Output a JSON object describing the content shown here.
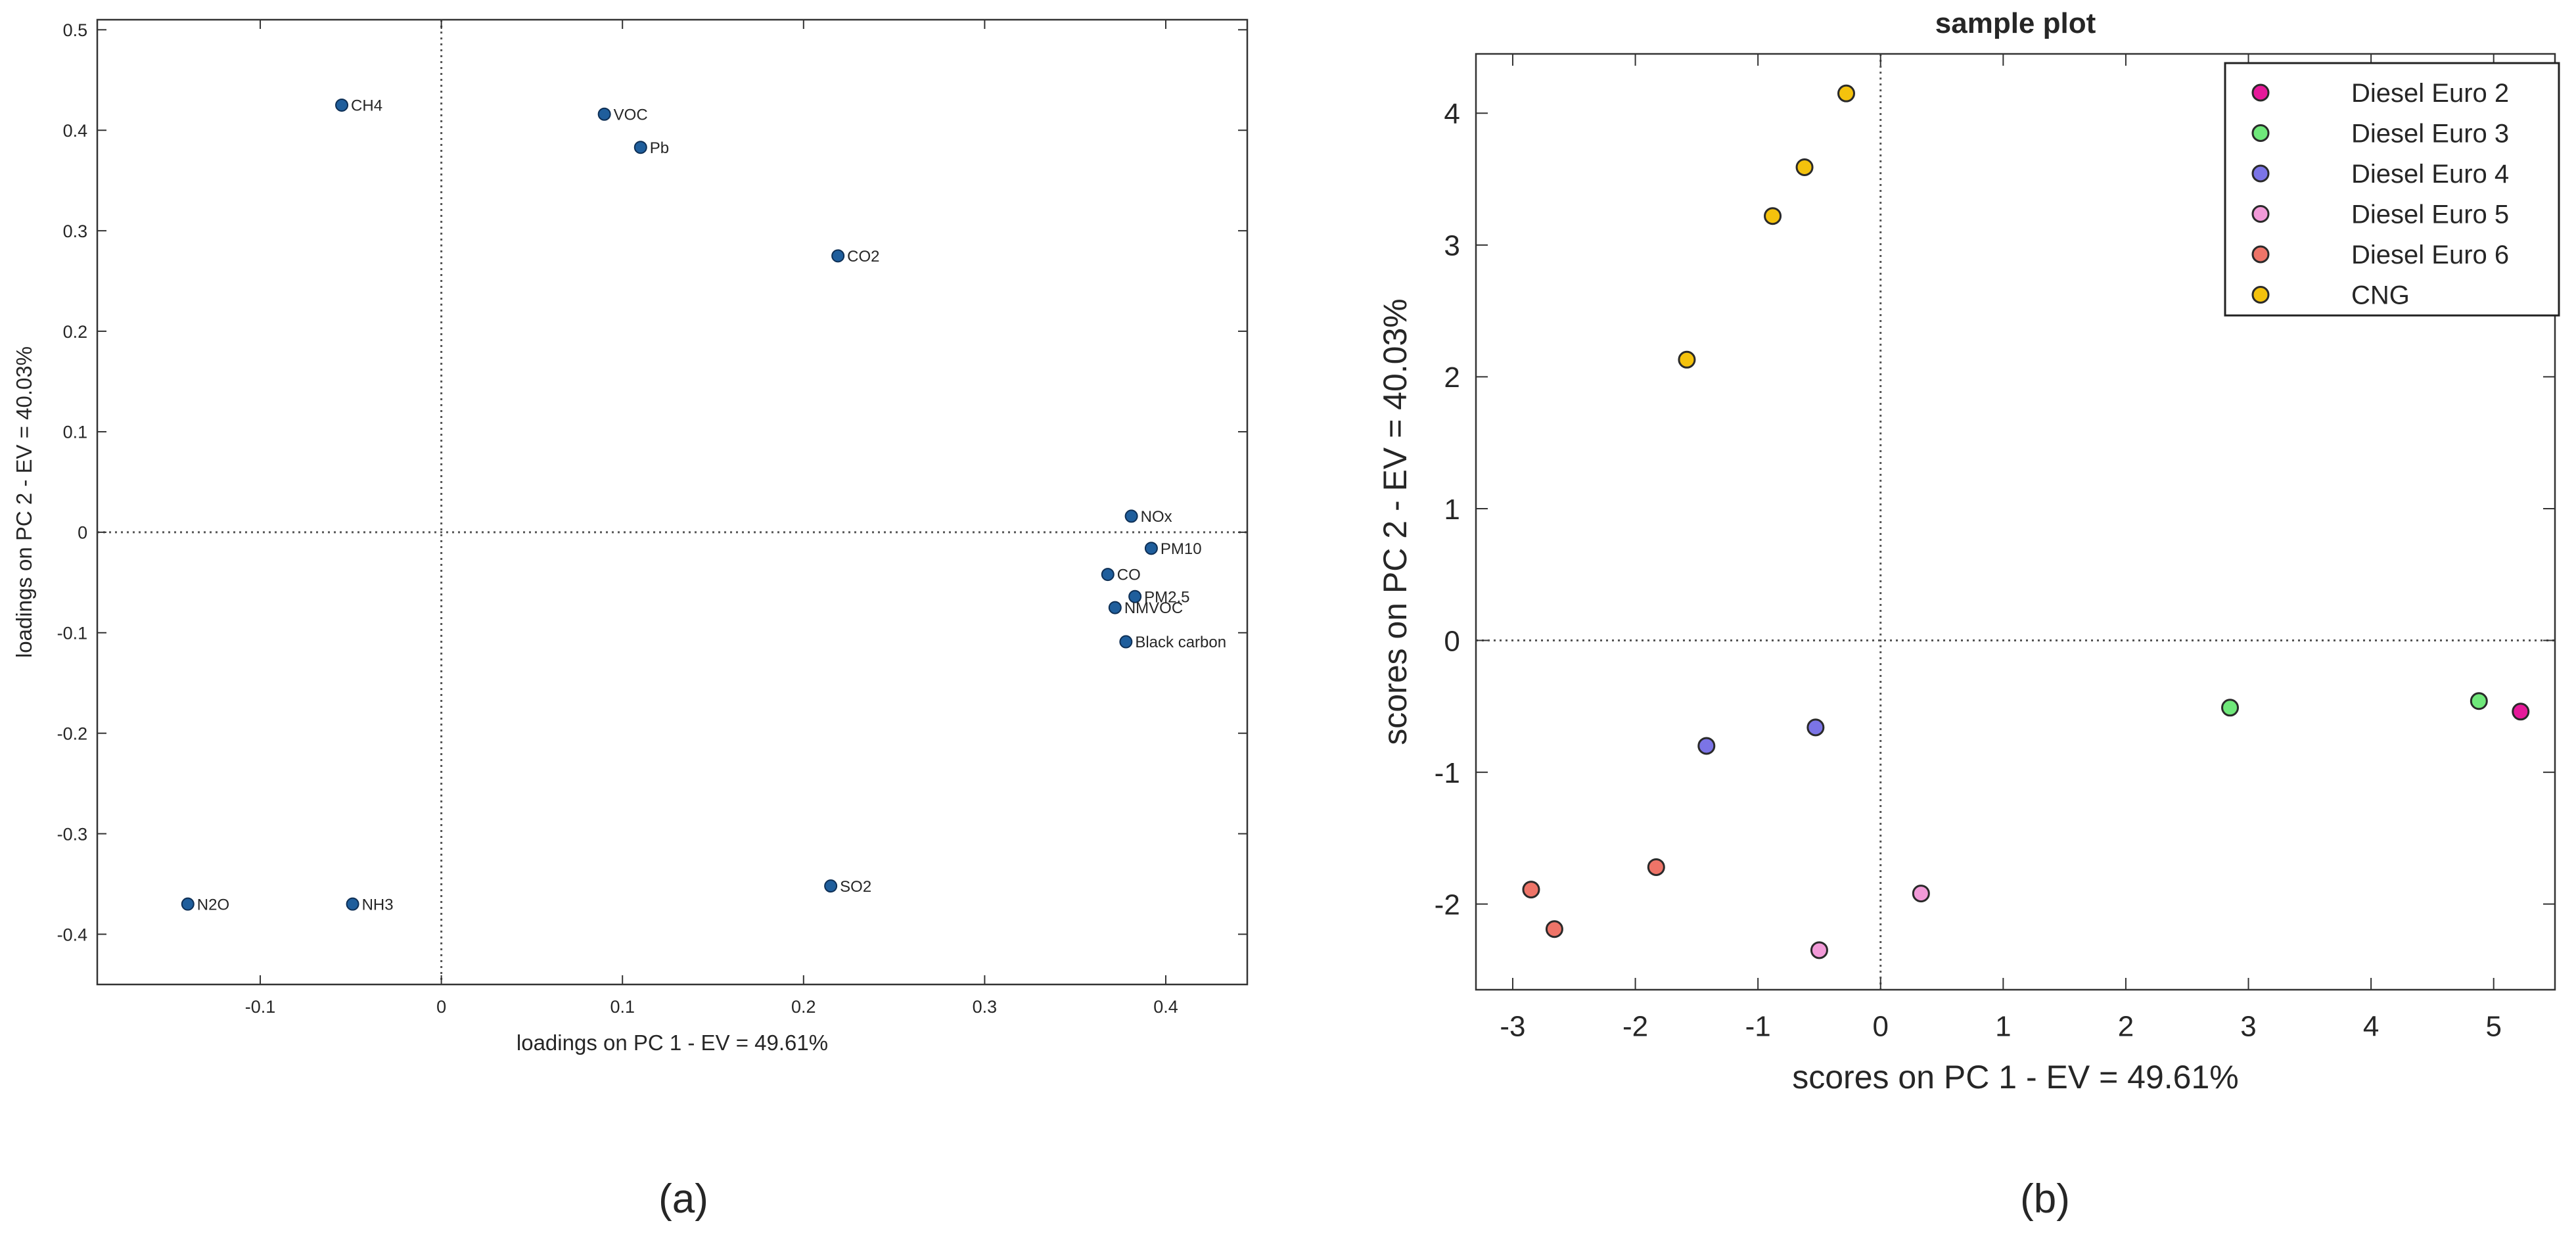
{
  "captions": {
    "a": "(a)",
    "b": "(b)"
  },
  "colors": {
    "loading_marker": "#1f5e9c",
    "axis": "#333333",
    "Diesel Euro 2": "#e6199a",
    "Diesel Euro 3": "#6fe87a",
    "Diesel Euro 4": "#7b74e6",
    "Diesel Euro 5": "#f29ad8",
    "Diesel Euro 6": "#ee7468",
    "CNG": "#f4c20d"
  },
  "chart_data": [
    {
      "id": "a",
      "type": "scatter",
      "title": "",
      "xlabel": "loadings on PC 1 - EV = 49.61%",
      "ylabel": "loadings on PC 2 - EV = 40.03%",
      "xlim": [
        -0.19,
        0.445
      ],
      "ylim": [
        -0.45,
        0.51
      ],
      "xticks": [
        -0.1,
        0,
        0.1,
        0.2,
        0.3,
        0.4
      ],
      "xtick_labels": [
        "-0.1",
        "0",
        "0.1",
        "0.2",
        "0.3",
        "0.4"
      ],
      "yticks": [
        -0.4,
        -0.3,
        -0.2,
        -0.1,
        0,
        0.1,
        0.2,
        0.3,
        0.4,
        0.5
      ],
      "ytick_labels": [
        "-0.4",
        "-0.3",
        "-0.2",
        "-0.1",
        "0",
        "0.1",
        "0.2",
        "0.3",
        "0.4",
        "0.5"
      ],
      "grid": false,
      "reference_lines": {
        "x": 0,
        "y": 0,
        "style": "dotted"
      },
      "points": [
        {
          "label": "CH4",
          "x": -0.055,
          "y": 0.425
        },
        {
          "label": "VOC",
          "x": 0.09,
          "y": 0.416
        },
        {
          "label": "Pb",
          "x": 0.11,
          "y": 0.383
        },
        {
          "label": "CO2",
          "x": 0.219,
          "y": 0.275
        },
        {
          "label": "NOx",
          "x": 0.381,
          "y": 0.016
        },
        {
          "label": "PM10",
          "x": 0.392,
          "y": -0.016
        },
        {
          "label": "CO",
          "x": 0.368,
          "y": -0.042
        },
        {
          "label": "PM2.5",
          "x": 0.383,
          "y": -0.064
        },
        {
          "label": "NMVOC",
          "x": 0.372,
          "y": -0.075
        },
        {
          "label": "Black carbon",
          "x": 0.378,
          "y": -0.109
        },
        {
          "label": "SO2",
          "x": 0.215,
          "y": -0.352
        },
        {
          "label": "N2O",
          "x": -0.14,
          "y": -0.37
        },
        {
          "label": "NH3",
          "x": -0.049,
          "y": -0.37
        }
      ]
    },
    {
      "id": "b",
      "type": "scatter",
      "title": "sample plot",
      "xlabel": "scores on PC 1 - EV = 49.61%",
      "ylabel": "scores on PC 2 - EV = 40.03%",
      "xlim": [
        -3.3,
        5.5
      ],
      "ylim": [
        -2.65,
        4.45
      ],
      "xticks": [
        -3,
        -2,
        -1,
        0,
        1,
        2,
        3,
        4,
        5
      ],
      "xtick_labels": [
        "-3",
        "-2",
        "-1",
        "0",
        "1",
        "2",
        "3",
        "4",
        "5"
      ],
      "yticks": [
        -2,
        -1,
        0,
        1,
        2,
        3,
        4
      ],
      "ytick_labels": [
        "-2",
        "-1",
        "0",
        "1",
        "2",
        "3",
        "4"
      ],
      "grid": false,
      "reference_lines": {
        "x": 0,
        "y": 0,
        "style": "dotted"
      },
      "legend_position": "top-right",
      "series": [
        {
          "name": "Diesel Euro 2",
          "points": [
            [
              5.22,
              -0.54
            ]
          ]
        },
        {
          "name": "Diesel Euro 3",
          "points": [
            [
              2.85,
              -0.51
            ],
            [
              4.88,
              -0.46
            ]
          ]
        },
        {
          "name": "Diesel Euro 4",
          "points": [
            [
              -1.42,
              -0.8
            ],
            [
              -0.53,
              -0.66
            ]
          ]
        },
        {
          "name": "Diesel Euro 5",
          "points": [
            [
              0.33,
              -1.92
            ],
            [
              -0.5,
              -2.35
            ]
          ]
        },
        {
          "name": "Diesel Euro 6",
          "points": [
            [
              -2.85,
              -1.89
            ],
            [
              -2.66,
              -2.19
            ],
            [
              -1.83,
              -1.72
            ]
          ]
        },
        {
          "name": "CNG",
          "points": [
            [
              -1.58,
              2.13
            ],
            [
              -0.88,
              3.22
            ],
            [
              -0.62,
              3.59
            ],
            [
              -0.28,
              4.15
            ]
          ]
        }
      ]
    }
  ]
}
